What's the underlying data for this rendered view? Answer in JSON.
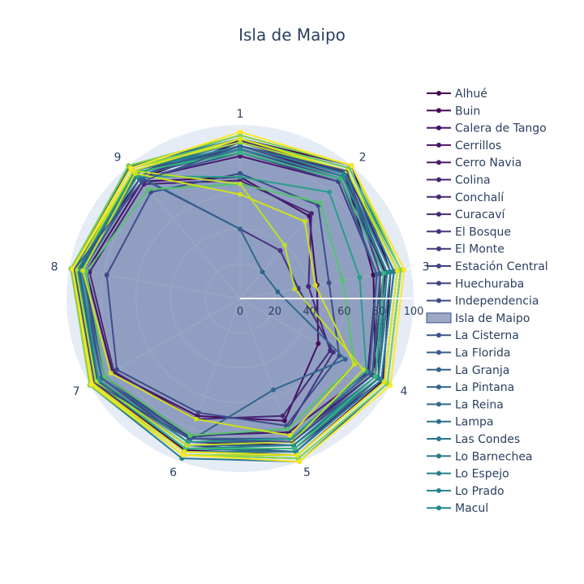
{
  "chart_data": {
    "type": "radar",
    "title": "Isla de Maipo",
    "axes": [
      "1",
      "2",
      "3",
      "4",
      "5",
      "6",
      "7",
      "8",
      "9"
    ],
    "radial_range": [
      0,
      100
    ],
    "radial_ticks": [
      "0",
      "20",
      "40",
      "60",
      "80",
      "100"
    ],
    "highlight_series": "Isla de Maipo",
    "highlight_values": [
      88,
      96,
      82,
      88,
      88,
      86,
      97,
      97,
      88
    ],
    "legend_position": "right",
    "legend_items": [
      "Alhué",
      "Buin",
      "Calera de Tango",
      "Cerrillos",
      "Cerro Navia",
      "Colina",
      "Conchalí",
      "Curacaví",
      "El Bosque",
      "El Monte",
      "Estación Central",
      "Huechuraba",
      "Independencia",
      "Isla de Maipo",
      "La Cisterna",
      "La Florida",
      "La Granja",
      "La Pintana",
      "La Reina",
      "Lampa",
      "Las Condes",
      "Lo Barnechea",
      "Lo Espejo",
      "Lo Prado",
      "Macul"
    ],
    "legend_colors": [
      "#440154",
      "#46075a",
      "#470d60",
      "#481467",
      "#481a6c",
      "#482071",
      "#472777",
      "#472c7a",
      "#46327e",
      "#443a83",
      "#424086",
      "#404588",
      "#3e4c8a",
      "#3b528b",
      "#39578c",
      "#365d8d",
      "#34618d",
      "#31668e",
      "#2f6b8e",
      "#2d708e",
      "#2b758e",
      "#297a8e",
      "#277f8e",
      "#26828e",
      "#24878e"
    ],
    "series": [
      {
        "name": "Alhué",
        "color": "#440154",
        "values": [
          92,
          100,
          88,
          95,
          96,
          93,
          98,
          98,
          98
        ]
      },
      {
        "name": "Buin",
        "color": "#46075a",
        "values": [
          90,
          94,
          78,
          90,
          90,
          88,
          95,
          96,
          90
        ]
      },
      {
        "name": "Calera de Tango",
        "color": "#470d60",
        "values": [
          70,
          62,
          45,
          52,
          75,
          72,
          85,
          90,
          88
        ]
      },
      {
        "name": "Cerrillos",
        "color": "#481467",
        "values": [
          88,
          92,
          85,
          88,
          86,
          88,
          92,
          94,
          92
        ]
      },
      {
        "name": "Cerro Navia",
        "color": "#481a6c",
        "values": [
          82,
          88,
          80,
          85,
          82,
          84,
          90,
          92,
          90
        ]
      },
      {
        "name": "Colina",
        "color": "#482071",
        "values": [
          91,
          96,
          88,
          92,
          90,
          90,
          96,
          95,
          94
        ]
      },
      {
        "name": "Conchalí",
        "color": "#472777",
        "values": [
          68,
          64,
          40,
          60,
          72,
          74,
          84,
          88,
          86
        ]
      },
      {
        "name": "Curacaví",
        "color": "#472c7a",
        "values": [
          90,
          95,
          90,
          94,
          92,
          92,
          97,
          97,
          96
        ]
      },
      {
        "name": "El Bosque",
        "color": "#46327e",
        "values": [
          40,
          36,
          34,
          62,
          80,
          85,
          92,
          94,
          92
        ]
      },
      {
        "name": "El Monte",
        "color": "#443a83",
        "values": [
          88,
          94,
          82,
          92,
          94,
          90,
          95,
          96,
          94
        ]
      },
      {
        "name": "Estación Central",
        "color": "#424086",
        "values": [
          86,
          90,
          84,
          88,
          88,
          88,
          92,
          94,
          92
        ]
      },
      {
        "name": "Huechuraba",
        "color": "#404588",
        "values": [
          84,
          88,
          80,
          86,
          86,
          86,
          90,
          92,
          90
        ]
      },
      {
        "name": "Independencia",
        "color": "#3e4c8a",
        "values": [
          72,
          70,
          52,
          66,
          78,
          70,
          82,
          78,
          80
        ]
      },
      {
        "name": "Isla de Maipo",
        "color": "#3b528b",
        "values": [
          88,
          96,
          82,
          88,
          88,
          86,
          97,
          97,
          88
        ]
      },
      {
        "name": "La Cisterna",
        "color": "#39578c",
        "values": [
          86,
          92,
          86,
          90,
          88,
          88,
          94,
          94,
          92
        ]
      },
      {
        "name": "La Florida",
        "color": "#365d8d",
        "values": [
          88,
          94,
          86,
          92,
          90,
          90,
          95,
          96,
          94
        ]
      },
      {
        "name": "La Granja",
        "color": "#34618d",
        "values": [
          84,
          90,
          80,
          86,
          86,
          86,
          92,
          92,
          90
        ]
      },
      {
        "name": "La Pintana",
        "color": "#31668e",
        "values": [
          40,
          20,
          22,
          70,
          56,
          88,
          94,
          95,
          93
        ]
      },
      {
        "name": "La Reina",
        "color": "#2f6b8e",
        "values": [
          92,
          98,
          92,
          96,
          96,
          94,
          98,
          98,
          98
        ]
      },
      {
        "name": "Lampa",
        "color": "#2d708e",
        "values": [
          90,
          96,
          90,
          94,
          94,
          92,
          96,
          96,
          96
        ]
      },
      {
        "name": "Las Condes",
        "color": "#2b758e",
        "values": [
          94,
          100,
          94,
          98,
          98,
          96,
          99,
          99,
          99
        ]
      },
      {
        "name": "Lo Barnechea",
        "color": "#297a8e",
        "values": [
          92,
          98,
          94,
          98,
          100,
          98,
          100,
          99,
          100
        ]
      },
      {
        "name": "Lo Espejo",
        "color": "#277f8e",
        "values": [
          90,
          96,
          90,
          94,
          94,
          94,
          98,
          97,
          96
        ]
      },
      {
        "name": "Lo Prado",
        "color": "#26828e",
        "values": [
          88,
          94,
          88,
          92,
          92,
          92,
          96,
          96,
          96
        ]
      },
      {
        "name": "Macul",
        "color": "#24878e",
        "values": [
          86,
          92,
          86,
          90,
          90,
          92,
          96,
          95,
          94
        ]
      }
    ],
    "unlisted_series": [
      {
        "color": "#2a9d8a",
        "values": [
          70,
          80,
          70,
          84,
          86,
          88,
          94,
          93,
          92
        ]
      },
      {
        "color": "#35b779",
        "values": [
          84,
          90,
          84,
          90,
          92,
          92,
          96,
          96,
          95
        ]
      },
      {
        "color": "#52c569",
        "values": [
          66,
          72,
          60,
          76,
          80,
          84,
          90,
          90,
          82
        ]
      },
      {
        "color": "#6ece58",
        "values": [
          92,
          98,
          92,
          96,
          96,
          96,
          98,
          98,
          98
        ]
      },
      {
        "color": "#86d549",
        "values": [
          94,
          100,
          94,
          98,
          98,
          96,
          100,
          99,
          100
        ]
      },
      {
        "color": "#a5db36",
        "values": [
          90,
          96,
          92,
          96,
          96,
          96,
          98,
          98,
          98
        ]
      },
      {
        "color": "#bddf26",
        "values": [
          66,
          40,
          32,
          82,
          88,
          90,
          96,
          96,
          96
        ]
      },
      {
        "color": "#d0e11c",
        "values": [
          60,
          58,
          44,
          76,
          84,
          74,
          86,
          92,
          94
        ]
      },
      {
        "color": "#e5e419",
        "values": [
          92,
          96,
          92,
          96,
          96,
          94,
          98,
          98,
          96
        ]
      },
      {
        "color": "#fde725",
        "values": [
          96,
          100,
          96,
          100,
          100,
          96,
          99,
          98,
          98
        ]
      }
    ]
  }
}
